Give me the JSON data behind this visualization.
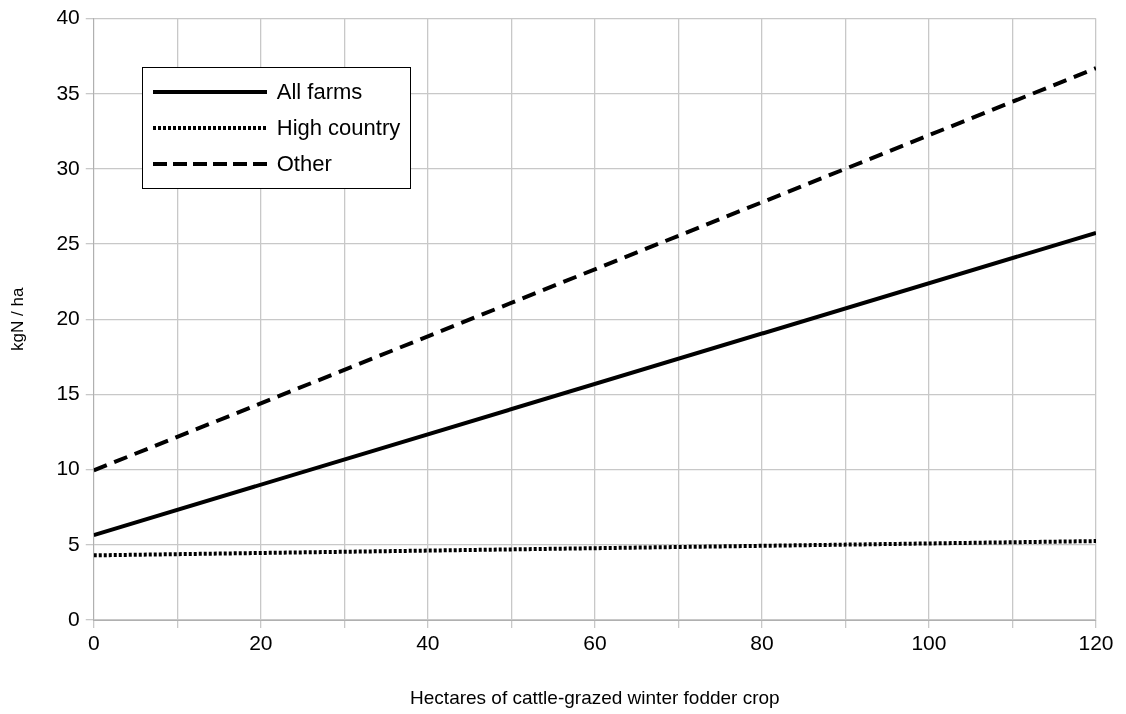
{
  "chart_data": {
    "type": "line",
    "xlabel": "Hectares of cattle-grazed winter fodder crop",
    "ylabel": "kgN / ha",
    "x": [
      0,
      120
    ],
    "series": [
      {
        "name": "All farms",
        "color": "#000000",
        "line_style": "solid",
        "values": [
          5.65,
          25.75
        ]
      },
      {
        "name": "High country",
        "color": "#000000",
        "line_style": "dotted",
        "values": [
          4.3,
          5.25
        ]
      },
      {
        "name": "Other",
        "color": "#000000",
        "line_style": "dashed",
        "values": [
          9.95,
          36.7
        ]
      }
    ],
    "xlim": [
      0,
      120
    ],
    "xticks": [
      0,
      {
        "value": 10,
        "label": null
      },
      20,
      {
        "value": 30,
        "label": null
      },
      40,
      {
        "value": 50,
        "label": null
      },
      60,
      {
        "value": 70,
        "label": null
      },
      80,
      {
        "value": 90,
        "label": null
      },
      100,
      {
        "value": 110,
        "label": null
      },
      120
    ],
    "ylim": [
      0,
      40
    ],
    "yticks": [
      0,
      5,
      10,
      15,
      20,
      25,
      30,
      35,
      40
    ],
    "grid": true,
    "legend": "top left",
    "marker": "none"
  }
}
